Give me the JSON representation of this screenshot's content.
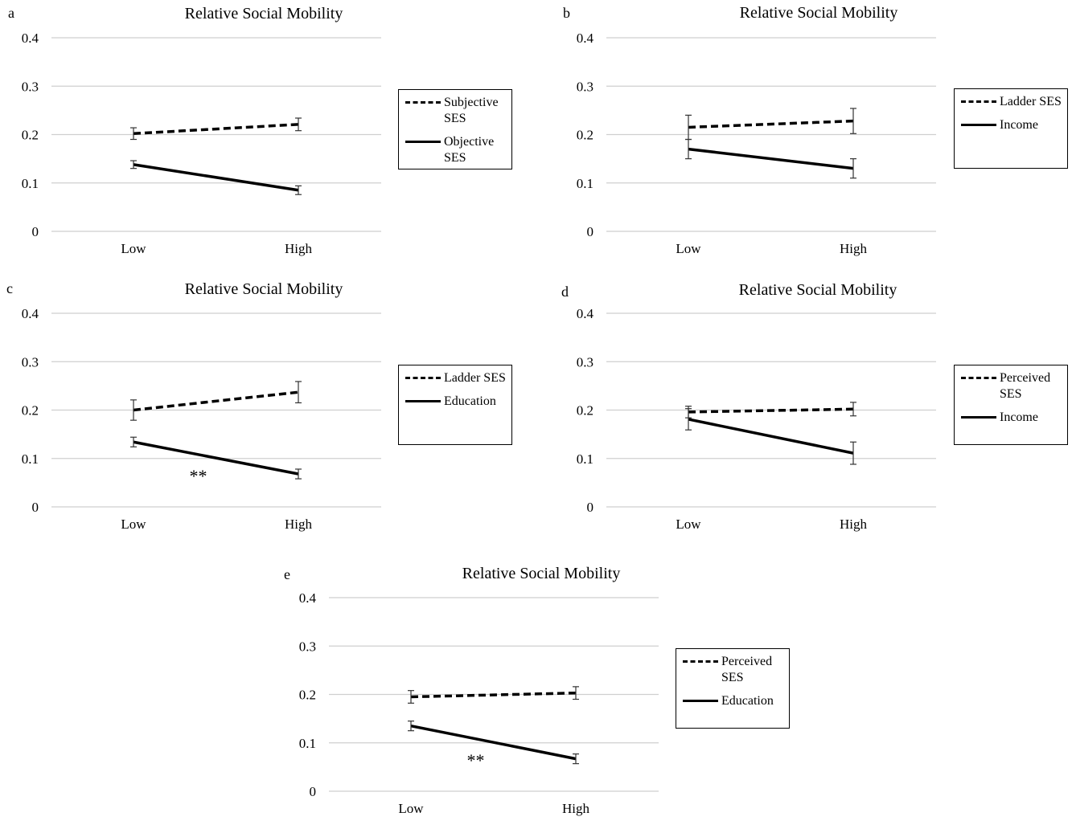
{
  "chart_data": [
    {
      "type": "line",
      "panel_letter": "a",
      "title": "Relative Social Mobility",
      "categories": [
        "Low",
        "High"
      ],
      "y_ticks": [
        "0.4",
        "0.3",
        "0.2",
        "0.1",
        "0"
      ],
      "ylim": [
        0,
        0.4
      ],
      "grid": true,
      "legend_position": "right",
      "annotation": "",
      "series": [
        {
          "name": "Subjective SES",
          "style": "dashed",
          "values": [
            0.202,
            0.221
          ],
          "error": [
            0.012,
            0.013
          ]
        },
        {
          "name": "Objective SES",
          "style": "solid",
          "values": [
            0.138,
            0.085
          ],
          "error": [
            0.008,
            0.009
          ]
        }
      ]
    },
    {
      "type": "line",
      "panel_letter": "b",
      "title": "Relative Social Mobility",
      "categories": [
        "Low",
        "High"
      ],
      "y_ticks": [
        "0.4",
        "0.3",
        "0.2",
        "0.1",
        "0"
      ],
      "ylim": [
        0,
        0.4
      ],
      "grid": true,
      "legend_position": "right",
      "annotation": "",
      "series": [
        {
          "name": "Ladder SES",
          "style": "dashed",
          "values": [
            0.215,
            0.228
          ],
          "error": [
            0.025,
            0.026
          ]
        },
        {
          "name": "Income",
          "style": "solid",
          "values": [
            0.17,
            0.13
          ],
          "error": [
            0.02,
            0.02
          ]
        }
      ]
    },
    {
      "type": "line",
      "panel_letter": "c",
      "title": "Relative Social Mobility",
      "categories": [
        "Low",
        "High"
      ],
      "y_ticks": [
        "0.4",
        "0.3",
        "0.2",
        "0.1",
        "0"
      ],
      "ylim": [
        0,
        0.4
      ],
      "grid": true,
      "legend_position": "right",
      "annotation": "**",
      "series": [
        {
          "name": "Ladder SES",
          "style": "dashed",
          "values": [
            0.2,
            0.237
          ],
          "error": [
            0.021,
            0.022
          ]
        },
        {
          "name": "Education",
          "style": "solid",
          "values": [
            0.134,
            0.068
          ],
          "error": [
            0.01,
            0.01
          ]
        }
      ]
    },
    {
      "type": "line",
      "panel_letter": "d",
      "title": "Relative Social Mobility",
      "categories": [
        "Low",
        "High"
      ],
      "y_ticks": [
        "0.4",
        "0.3",
        "0.2",
        "0.1",
        "0"
      ],
      "ylim": [
        0,
        0.4
      ],
      "grid": true,
      "legend_position": "right",
      "annotation": "",
      "series": [
        {
          "name": "Perceived SES",
          "style": "dashed",
          "values": [
            0.196,
            0.202
          ],
          "error": [
            0.012,
            0.014
          ]
        },
        {
          "name": "Income",
          "style": "solid",
          "values": [
            0.181,
            0.111
          ],
          "error": [
            0.022,
            0.023
          ]
        }
      ]
    },
    {
      "type": "line",
      "panel_letter": "e",
      "title": "Relative Social Mobility",
      "categories": [
        "Low",
        "High"
      ],
      "y_ticks": [
        "0.4",
        "0.3",
        "0.2",
        "0.1",
        "0"
      ],
      "ylim": [
        0,
        0.4
      ],
      "grid": true,
      "legend_position": "right",
      "annotation": "**",
      "series": [
        {
          "name": "Perceived SES",
          "style": "dashed",
          "values": [
            0.195,
            0.203
          ],
          "error": [
            0.013,
            0.013
          ]
        },
        {
          "name": "Education",
          "style": "solid",
          "values": [
            0.135,
            0.067
          ],
          "error": [
            0.01,
            0.01
          ]
        }
      ]
    }
  ]
}
